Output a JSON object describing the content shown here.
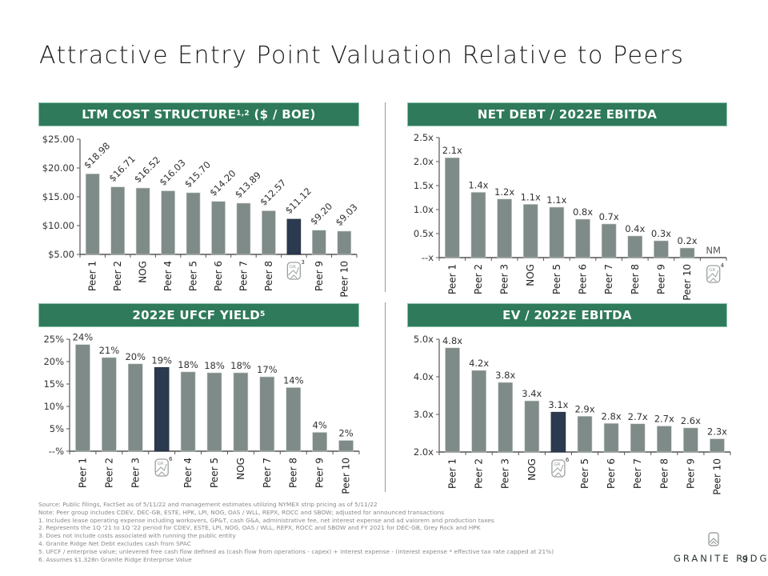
{
  "page": {
    "title": "Attractive Entry Point Valuation Relative to Peers",
    "page_number": "9",
    "brand_name": "GRANITE RIDGE"
  },
  "colors": {
    "header_green": "#2e7a5a",
    "peer_bar": "#7f8b88",
    "highlight_bar": "#2b3a4f"
  },
  "headers": {
    "cost": "LTM COST STRUCTURE",
    "cost_sup": "1,2",
    "cost_suffix": " ($ / BOE)",
    "netdebt": "NET DEBT / 2022E EBITDA",
    "ufcf": "2022E UFCF YIELD",
    "ufcf_sup": "5",
    "ev": "EV / 2022E EBITDA"
  },
  "chart_data": [
    {
      "id": "cost",
      "type": "bar",
      "title": "LTM COST STRUCTURE1,2 ($ / BOE)",
      "categories": [
        "Peer 1",
        "Peer 2",
        "NOG",
        "Peer 4",
        "Peer 5",
        "Peer 6",
        "Peer 7",
        "Peer 8",
        "GR",
        "Peer 9",
        "Peer 10"
      ],
      "values": [
        18.98,
        16.71,
        16.52,
        16.03,
        15.7,
        14.2,
        13.89,
        12.57,
        11.12,
        9.2,
        9.03
      ],
      "data_labels": [
        "$18.98",
        "$16.71",
        "$16.52",
        "$16.03",
        "$15.70",
        "$14.20",
        "$13.89",
        "$12.57",
        "$11.12",
        "$9.20",
        "$9.03"
      ],
      "highlight_index": 8,
      "gr_footnote": "3",
      "ylim": [
        5,
        25
      ],
      "yticks": [
        5,
        10,
        15,
        20,
        25
      ],
      "ytick_labels": [
        "$5.00",
        "$10.00",
        "$15.00",
        "$20.00",
        "$25.00"
      ],
      "label_rotation": "diagonal",
      "xlabel": "",
      "ylabel": "",
      "grid": false,
      "legend": "none"
    },
    {
      "id": "netdebt",
      "type": "bar",
      "title": "NET DEBT / 2022E EBITDA",
      "categories": [
        "Peer 1",
        "Peer 2",
        "Peer 3",
        "NOG",
        "Peer 5",
        "Peer 6",
        "Peer 7",
        "Peer 8",
        "Peer 9",
        "Peer 10",
        "GR"
      ],
      "values": [
        2.08,
        1.36,
        1.22,
        1.11,
        1.05,
        0.8,
        0.7,
        0.45,
        0.35,
        0.2,
        null
      ],
      "data_labels": [
        "2.1x",
        "1.4x",
        "1.2x",
        "1.1x",
        "1.1x",
        "0.8x",
        "0.7x",
        "0.4x",
        "0.3x",
        "0.2x",
        "NM"
      ],
      "highlight_index": 10,
      "gr_footnote": "4",
      "ylim": [
        0,
        2.5
      ],
      "yticks": [
        0,
        0.5,
        1.0,
        1.5,
        2.0,
        2.5
      ],
      "ytick_labels": [
        "--x",
        "0.5x",
        "1.0x",
        "1.5x",
        "2.0x",
        "2.5x"
      ],
      "xlabel": "",
      "ylabel": "",
      "grid": false,
      "legend": "none"
    },
    {
      "id": "ufcf",
      "type": "bar",
      "title": "2022E UFCF YIELD5",
      "categories": [
        "Peer 1",
        "Peer 2",
        "Peer 3",
        "GR",
        "Peer 4",
        "Peer 5",
        "NOG",
        "Peer 7",
        "Peer 8",
        "Peer 9",
        "Peer 10"
      ],
      "values": [
        23.8,
        20.9,
        19.5,
        18.7,
        17.7,
        17.5,
        17.5,
        16.6,
        14.2,
        4.2,
        2.4
      ],
      "data_labels": [
        "24%",
        "21%",
        "20%",
        "19%",
        "18%",
        "18%",
        "18%",
        "17%",
        "14%",
        "4%",
        "2%"
      ],
      "highlight_index": 3,
      "gr_footnote": "6",
      "ylim": [
        0,
        25
      ],
      "yticks": [
        0,
        5,
        10,
        15,
        20,
        25
      ],
      "ytick_labels": [
        "--%",
        "5%",
        "10%",
        "15%",
        "20%",
        "25%"
      ],
      "xlabel": "",
      "ylabel": "",
      "grid": false,
      "legend": "none"
    },
    {
      "id": "ev",
      "type": "bar",
      "title": "EV / 2022E EBITDA",
      "categories": [
        "Peer 1",
        "Peer 2",
        "Peer 3",
        "NOG",
        "GR",
        "Peer 5",
        "Peer 6",
        "Peer 7",
        "Peer 8",
        "Peer 9",
        "Peer 10"
      ],
      "values": [
        4.77,
        4.17,
        3.85,
        3.36,
        3.06,
        2.95,
        2.76,
        2.75,
        2.69,
        2.64,
        2.35
      ],
      "data_labels": [
        "4.8x",
        "4.2x",
        "3.8x",
        "3.4x",
        "3.1x",
        "2.9x",
        "2.8x",
        "2.7x",
        "2.7x",
        "2.6x",
        "2.3x"
      ],
      "highlight_index": 4,
      "gr_footnote": "6",
      "ylim": [
        2.0,
        5.0
      ],
      "yticks": [
        2.0,
        3.0,
        4.0,
        5.0
      ],
      "ytick_labels": [
        "2.0x",
        "3.0x",
        "4.0x",
        "5.0x"
      ],
      "xlabel": "",
      "ylabel": "",
      "grid": false,
      "legend": "none"
    }
  ],
  "footnotes": [
    "Source: Public filings, FactSet as of 5/11/22 and management estimates utilizing NYMEX strip pricing as of 5/11/22",
    "Note: Peer group includes CDEV, DEC-GB, ESTE, HPK, LPI, NOG, OAS / WLL, REPX, ROCC and SBOW; adjusted for announced transactions",
    "1.  Includes lease operating expense including workovers, GP&T, cash G&A, administrative fee, net interest expense and ad valorem and production taxes",
    "2.  Represents the 1Q '21 to 1Q '22 period for CDEV, ESTE, LPI, NOG, OAS / WLL, REPX, ROCC and SBOW and FY 2021 for DEC-GB, Grey Rock and HPK",
    "3.  Does not include costs associated with running the public entity",
    "4.  Granite Ridge Net Debt excludes cash from SPAC",
    "5.  UFCF / enterprise value; unlevered free cash flow defined as (cash flow from operations - capex) + interest expense - (interest expense * effective tax rate capped at 21%)",
    "6.  Assumes $1.328n Granite Ridge Enterprise Value"
  ]
}
